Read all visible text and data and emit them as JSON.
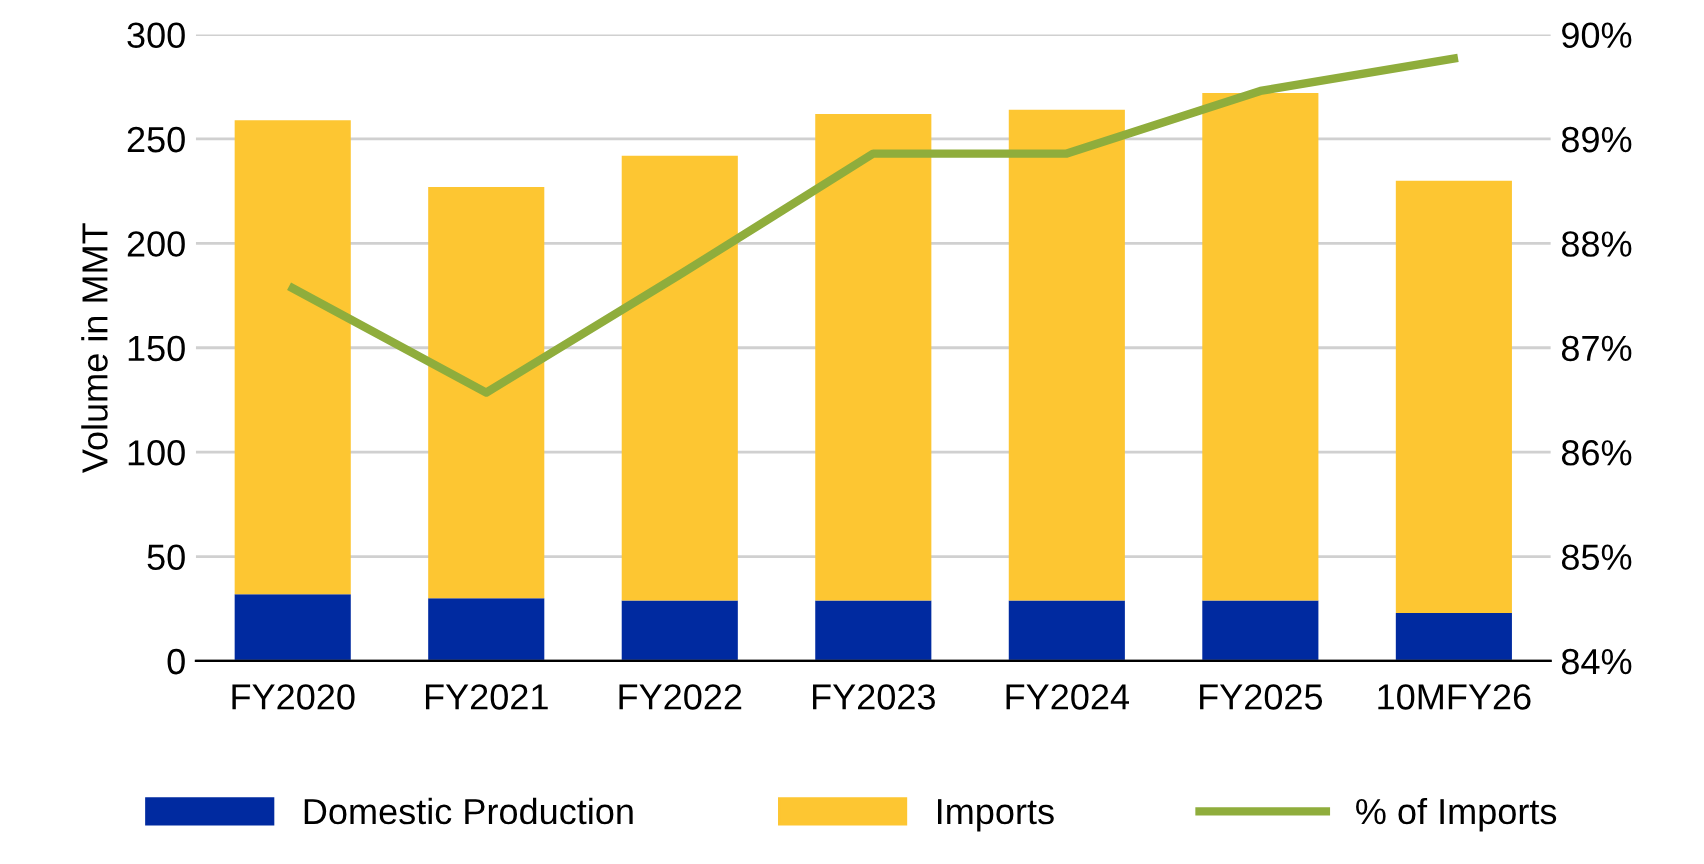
{
  "chart_data": {
    "type": "bar",
    "stacked": true,
    "ylabel": "Volume in MMT",
    "categories": [
      "FY2020",
      "FY2021",
      "FY2022",
      "FY2023",
      "FY2024",
      "FY2025",
      "10MFY26"
    ],
    "series": [
      {
        "name": "Domestic Production",
        "color": "#002aa0",
        "values": [
          32,
          30,
          29,
          29,
          29,
          29,
          23
        ]
      },
      {
        "name": "Imports",
        "color": "#fdc632",
        "values": [
          227,
          197,
          213,
          233,
          235,
          243,
          207
        ]
      },
      {
        "name": "% of Imports",
        "type": "line",
        "axis": "y2",
        "color": "#8fad3c",
        "values": [
          87.57,
          86.57,
          87.7,
          88.86,
          88.86,
          89.46,
          89.77
        ]
      }
    ],
    "ylim": [
      0,
      300
    ],
    "yticks": [
      0,
      50,
      100,
      150,
      200,
      250,
      300
    ],
    "y2lim": [
      84,
      90
    ],
    "y2ticks": [
      {
        "value": 84,
        "label": "84%"
      },
      {
        "value": 85,
        "label": "85%"
      },
      {
        "value": 86,
        "label": "86%"
      },
      {
        "value": 87,
        "label": "87%"
      },
      {
        "value": 88,
        "label": "88%"
      },
      {
        "value": 89,
        "label": "89%"
      },
      {
        "value": 90,
        "label": "90%"
      }
    ],
    "grid": "y",
    "legend": "bottom",
    "marker": "none",
    "line_style": "solid"
  }
}
